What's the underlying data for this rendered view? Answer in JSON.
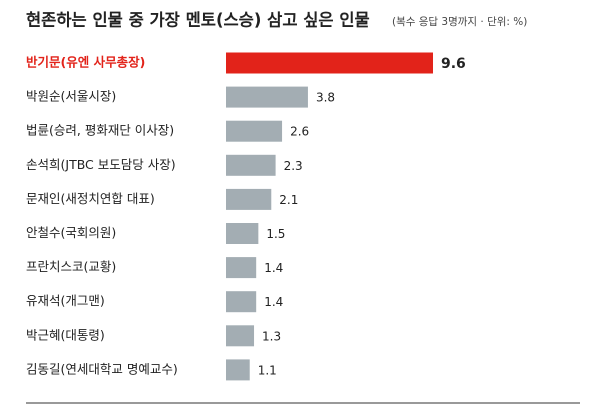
{
  "chart_data": {
    "type": "bar",
    "orientation": "horizontal",
    "title": "현존하는 인물 중 가장 멘토(스승) 삼고 싶은 인물",
    "subtitle": "(복수 응답 3명까지 · 단위: %)",
    "categories": [
      "반기문(유엔 사무총장)",
      "박원순(서울시장)",
      "법륜(승려, 평화재단 이사장)",
      "손석희(JTBC 보도담당 사장)",
      "문재인(새정치연합 대표)",
      "안철수(국회의원)",
      "프란치스코(교황)",
      "유재석(개그맨)",
      "박근혜(대통령)",
      "김동길(연세대학교 명예교수)"
    ],
    "values": [
      9.6,
      3.8,
      2.6,
      2.3,
      2.1,
      1.5,
      1.4,
      1.4,
      1.3,
      1.1
    ],
    "colors": [
      "#e2231a",
      "#a3adb3",
      "#a3adb3",
      "#a3adb3",
      "#a3adb3",
      "#a3adb3",
      "#a3adb3",
      "#a3adb3",
      "#a3adb3",
      "#a3adb3"
    ],
    "label_colors": [
      "#e2231a",
      "#222222",
      "#222222",
      "#222222",
      "#222222",
      "#222222",
      "#222222",
      "#222222",
      "#222222",
      "#222222"
    ]
  }
}
